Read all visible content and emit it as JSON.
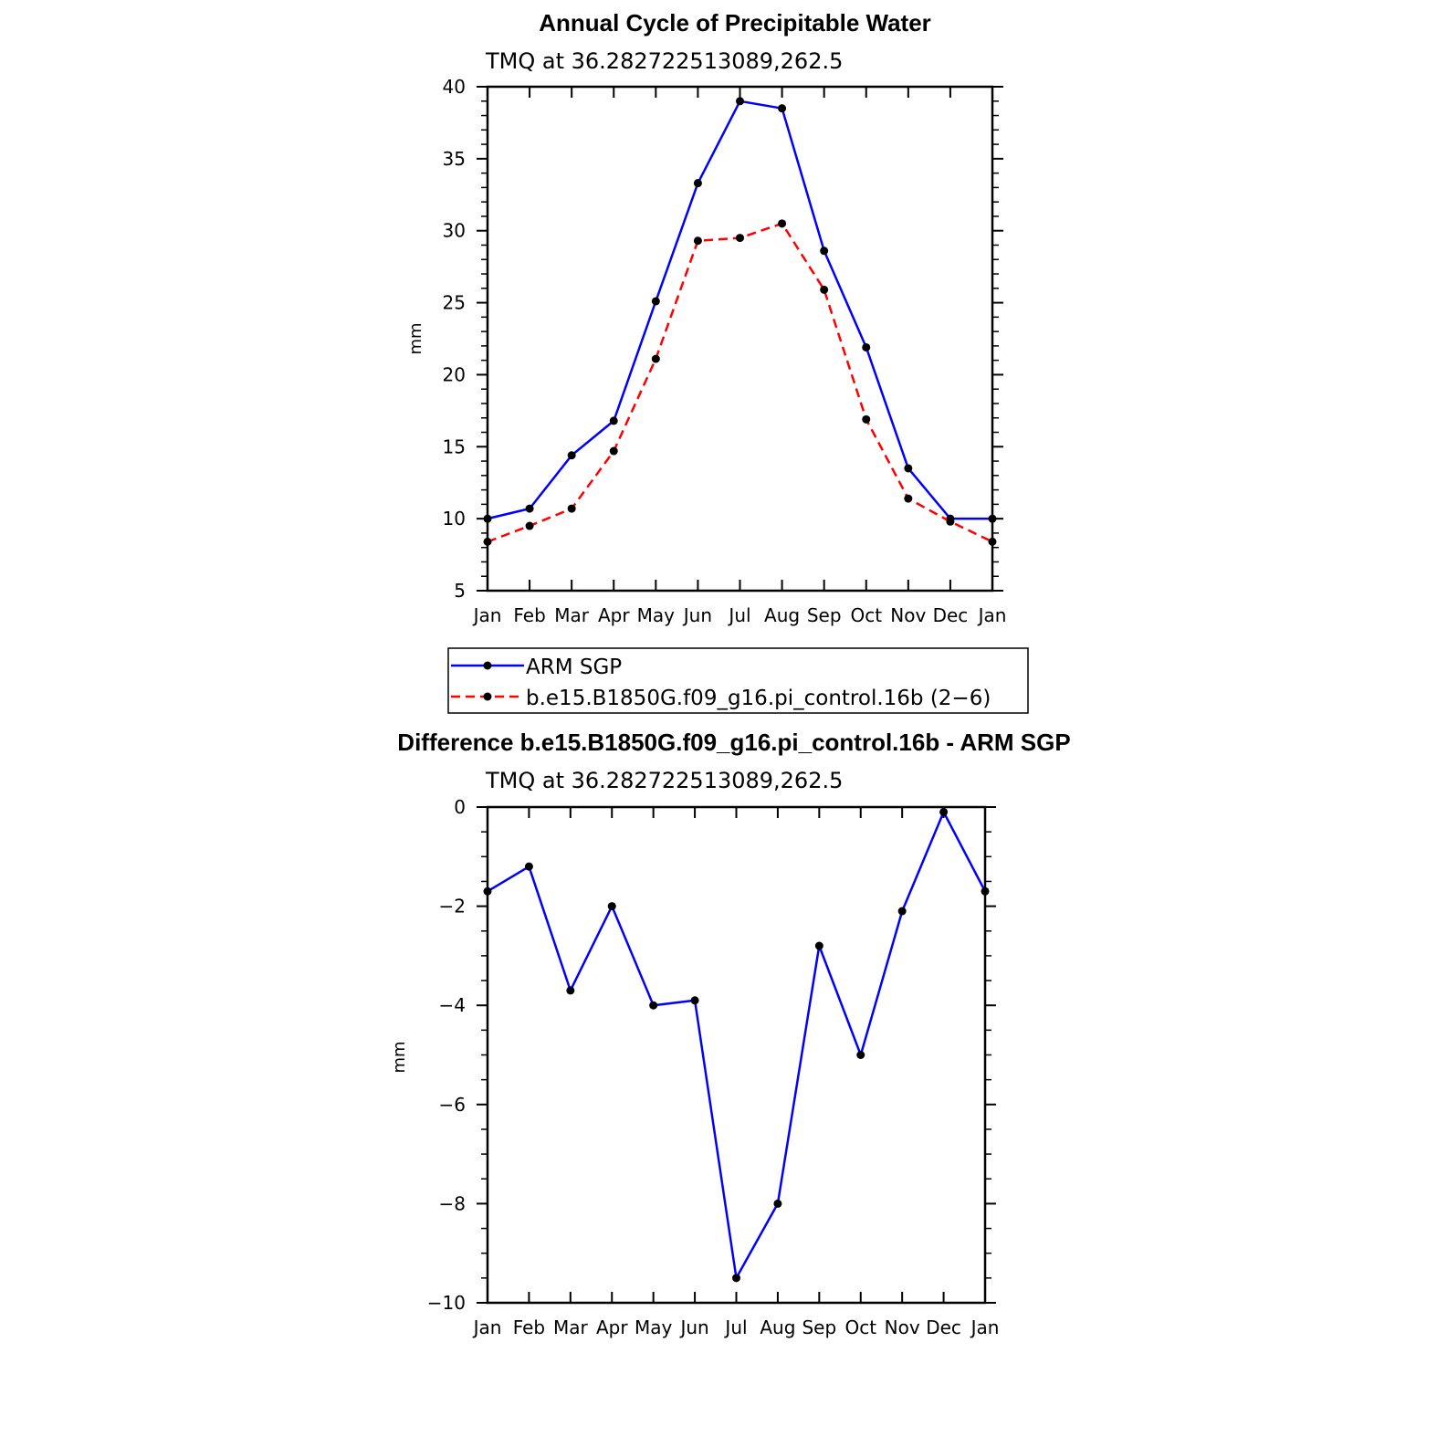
{
  "chart_data": [
    {
      "type": "line",
      "title": "Annual Cycle of Precipitable Water",
      "subtitle": "TMQ at 36.282722513089,262.5",
      "xlabel": "",
      "ylabel": "mm",
      "categories": [
        "Jan",
        "Feb",
        "Mar",
        "Apr",
        "May",
        "Jun",
        "Jul",
        "Aug",
        "Sep",
        "Oct",
        "Nov",
        "Dec",
        "Jan"
      ],
      "ylim": [
        5,
        40
      ],
      "yticks": [
        5,
        10,
        15,
        20,
        25,
        30,
        35,
        40
      ],
      "ytick_labels": [
        "5",
        "10",
        "15",
        "20",
        "25",
        "30",
        "35",
        "40"
      ],
      "grid": false,
      "legend_position": "bottom",
      "series": [
        {
          "name": "ARM SGP",
          "color": "#0000ff",
          "dash": "solid",
          "values": [
            10.0,
            10.7,
            14.4,
            16.8,
            25.1,
            33.3,
            39.0,
            38.5,
            28.6,
            21.9,
            13.5,
            10.0,
            10.0
          ]
        },
        {
          "name": "b.e15.B1850G.f09_g16.pi_control.16b (2−6)",
          "color": "#ff0000",
          "dash": "dashed",
          "values": [
            8.4,
            9.5,
            10.7,
            14.7,
            21.1,
            29.3,
            29.5,
            30.5,
            25.9,
            16.9,
            11.4,
            9.8,
            8.4
          ]
        }
      ]
    },
    {
      "type": "line",
      "title": "Difference b.e15.B1850G.f09_g16.pi_control.16b - ARM SGP",
      "subtitle": "TMQ at 36.282722513089,262.5",
      "xlabel": "",
      "ylabel": "mm",
      "categories": [
        "Jan",
        "Feb",
        "Mar",
        "Apr",
        "May",
        "Jun",
        "Jul",
        "Aug",
        "Sep",
        "Oct",
        "Nov",
        "Dec",
        "Jan"
      ],
      "ylim": [
        -10,
        0
      ],
      "yticks": [
        -10,
        -8,
        -6,
        -4,
        -2,
        0
      ],
      "ytick_labels": [
        "−10",
        "−8",
        "−6",
        "−4",
        "−2",
        "0"
      ],
      "grid": false,
      "series": [
        {
          "color": "#0000ff",
          "dash": "solid",
          "values": [
            -1.7,
            -1.2,
            -3.7,
            -2.0,
            -4.0,
            -3.9,
            -9.5,
            -8.0,
            -2.8,
            -5.0,
            -2.1,
            -0.1,
            -1.7
          ]
        }
      ]
    }
  ]
}
